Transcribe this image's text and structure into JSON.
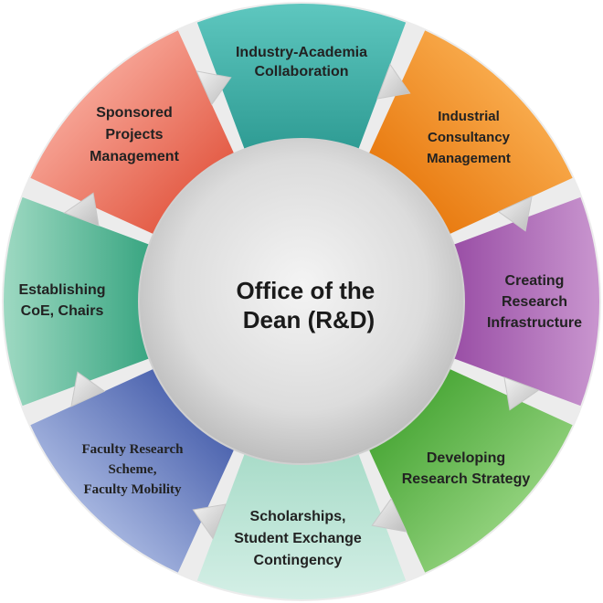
{
  "center": {
    "lines": [
      "Office of the",
      "Dean (R&D)"
    ]
  },
  "segments": [
    {
      "id": "industry-academia",
      "lines": [
        "Industry-Academia",
        "Collaboration"
      ],
      "color": "#5ec7bf",
      "dark": "#2f9c94"
    },
    {
      "id": "industrial-consultancy",
      "lines": [
        "Industrial",
        "Consultancy",
        "Management"
      ],
      "color": "#f8a94a",
      "dark": "#e97c12"
    },
    {
      "id": "research-infrastructure",
      "lines": [
        "Creating",
        "Research",
        "Infrastructure"
      ],
      "color": "#c996cf",
      "dark": "#9a4fa6"
    },
    {
      "id": "research-strategy",
      "lines": [
        "Developing",
        "Research Strategy"
      ],
      "color": "#8fd07a",
      "dark": "#4da93a"
    },
    {
      "id": "scholarships",
      "lines": [
        "Scholarships,",
        "Student Exchange",
        "Contingency"
      ],
      "color": "#d4efe6",
      "dark": "#a9dcc9"
    },
    {
      "id": "faculty-research",
      "lines": [
        "Faculty Research",
        "Scheme,",
        "Faculty Mobility"
      ],
      "color": "#a3b3de",
      "dark": "#4f66b0"
    },
    {
      "id": "coe-chairs",
      "lines": [
        "Establishing",
        "CoE, Chairs"
      ],
      "color": "#9ed9c2",
      "dark": "#3aa682"
    },
    {
      "id": "sponsored-projects",
      "lines": [
        "Sponsored",
        "Projects",
        "Management"
      ],
      "color": "#f6a192",
      "dark": "#e45e48"
    }
  ]
}
